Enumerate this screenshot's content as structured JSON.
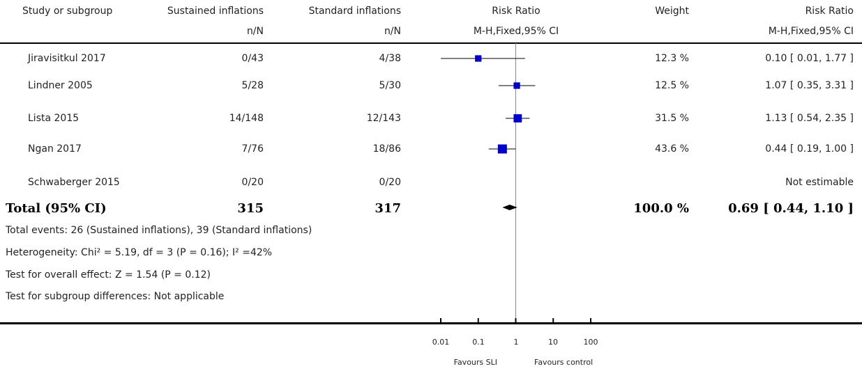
{
  "header": {
    "col_study": "Study or subgroup",
    "col_group1": "Sustained inflations",
    "col_group2": "Standard inflations",
    "col_rr": "Risk Ratio",
    "col_weight": "Weight",
    "col_rr_ci": "Risk Ratio",
    "sub_group1": "n/N",
    "sub_group2": "n/N",
    "sub_rr": "M-H,Fixed,95% CI",
    "sub_rr_ci": "M-H,Fixed,95% CI"
  },
  "studies": [
    {
      "name": "Jiravisitkul 2017",
      "g1": "0/43",
      "g2": "4/38",
      "weight": "12.3 %",
      "ci_text": "0.10 [ 0.01, 1.77 ]"
    },
    {
      "name": "Lindner 2005",
      "g1": "5/28",
      "g2": "5/30",
      "weight": "12.5 %",
      "ci_text": "1.07 [ 0.35, 3.31 ]"
    },
    {
      "name": "Lista 2015",
      "g1": "14/148",
      "g2": "12/143",
      "weight": "31.5 %",
      "ci_text": "1.13 [ 0.54, 2.35 ]"
    },
    {
      "name": "Ngan 2017",
      "g1": "7/76",
      "g2": "18/86",
      "weight": "43.6 %",
      "ci_text": "0.44 [ 0.19, 1.00 ]"
    },
    {
      "name": "Schwaberger 2015",
      "g1": "0/20",
      "g2": "0/20",
      "weight": "",
      "ci_text": "Not estimable"
    }
  ],
  "total": {
    "label": "Total (95% CI)",
    "g1": "315",
    "g2": "317",
    "weight": "100.0 %",
    "ci_text": "0.69 [ 0.44, 1.10 ]"
  },
  "footnotes": {
    "events": "Total events: 26 (Sustained inflations), 39 (Standard inflations)",
    "heterogeneity": "Heterogeneity: Chi² = 5.19, df = 3 (P = 0.16); I² =42%",
    "overall": "Test for overall effect: Z = 1.54 (P = 0.12)",
    "subgroup": "Test for subgroup differences: Not applicable"
  },
  "axis": {
    "ticks": [
      "0.01",
      "0.1",
      "1",
      "10",
      "100"
    ],
    "favours_left": "Favours SLI",
    "favours_right": "Favours control"
  },
  "colors": {
    "marker": "#0000cc",
    "line": "#000000",
    "ref_line": "#888888"
  },
  "chart_data": {
    "type": "forest",
    "scale": "log",
    "xlim": [
      0.01,
      100
    ],
    "reference_line": 1,
    "studies": [
      {
        "name": "Jiravisitkul 2017",
        "rr": 0.1,
        "lower": 0.01,
        "upper": 1.77,
        "weight": 12.3
      },
      {
        "name": "Lindner 2005",
        "rr": 1.07,
        "lower": 0.35,
        "upper": 3.31,
        "weight": 12.5
      },
      {
        "name": "Lista 2015",
        "rr": 1.13,
        "lower": 0.54,
        "upper": 2.35,
        "weight": 31.5
      },
      {
        "name": "Ngan 2017",
        "rr": 0.44,
        "lower": 0.19,
        "upper": 1.0,
        "weight": 43.6
      },
      {
        "name": "Schwaberger 2015",
        "rr": null,
        "lower": null,
        "upper": null,
        "weight": null
      }
    ],
    "pooled": {
      "name": "Total (95% CI)",
      "rr": 0.69,
      "lower": 0.44,
      "upper": 1.1,
      "weight": 100.0
    }
  }
}
